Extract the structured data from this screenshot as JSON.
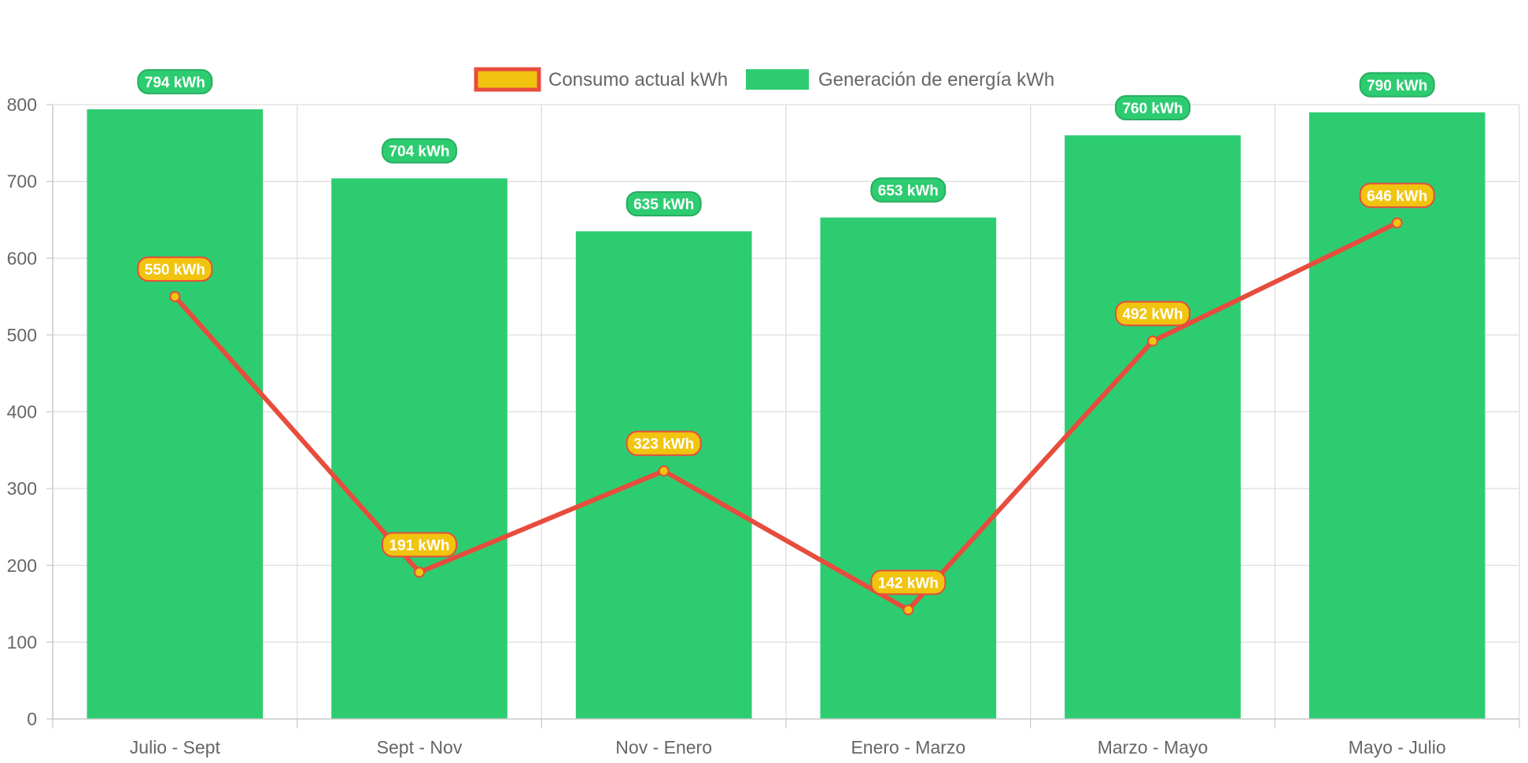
{
  "chart_data": {
    "type": "bar",
    "categories": [
      "Julio - Sept",
      "Sept - Nov",
      "Nov - Enero",
      "Enero - Marzo",
      "Marzo - Mayo",
      "Mayo - Julio"
    ],
    "series": [
      {
        "name": "Consumo actual kWh",
        "type": "line",
        "values": [
          550,
          191,
          323,
          142,
          492,
          646
        ],
        "labels": [
          "550 kWh",
          "191 kWh",
          "323 kWh",
          "142 kWh",
          "492 kWh",
          "646 kWh"
        ],
        "color": "#e74c3c",
        "fill_color": "#f1c40f"
      },
      {
        "name": "Generación de energía kWh",
        "type": "bar",
        "values": [
          794,
          704,
          635,
          653,
          760,
          790
        ],
        "labels": [
          "794 kWh",
          "704 kWh",
          "635 kWh",
          "653 kWh",
          "760 kWh",
          "790 kWh"
        ],
        "color": "#2ecc71",
        "label_border_color": "#27ae60"
      }
    ],
    "ylim": [
      0,
      800
    ],
    "yticks": [
      "0",
      "100",
      "200",
      "300",
      "400",
      "500",
      "600",
      "700",
      "800"
    ],
    "grid": true,
    "legend_position": "top-center"
  }
}
